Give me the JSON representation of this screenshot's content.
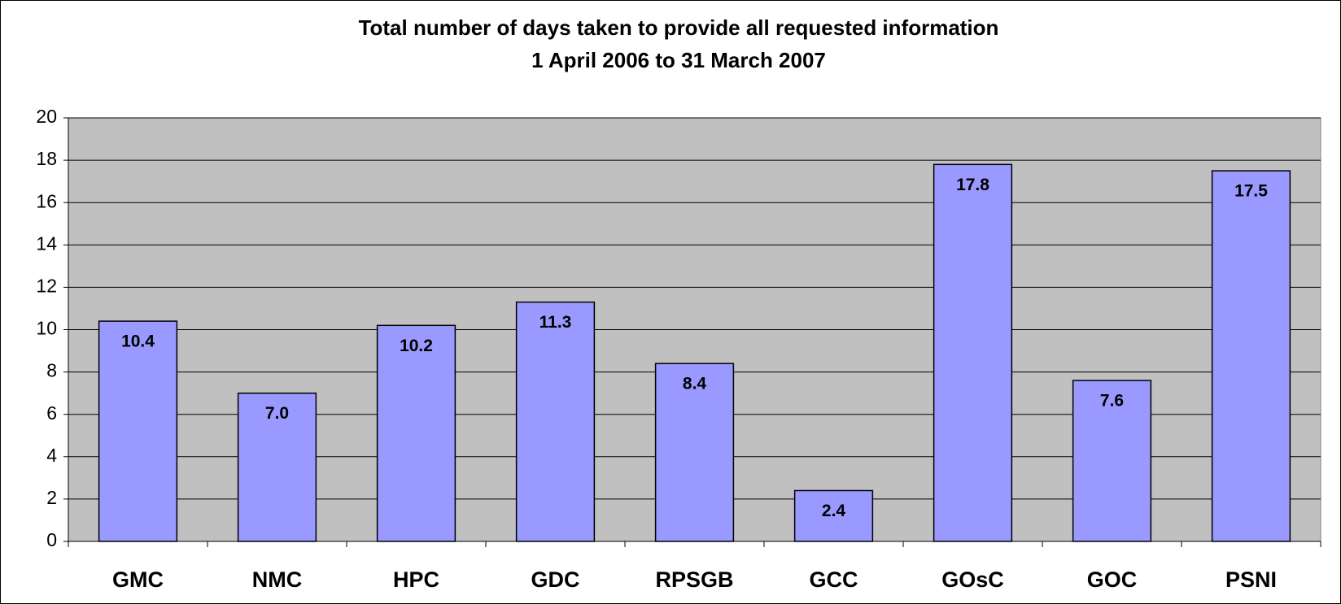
{
  "chart_data": {
    "type": "bar",
    "title": "Total number of days taken to provide all requested information",
    "subtitle": "1 April 2006 to 31 March 2007",
    "categories": [
      "GMC",
      "NMC",
      "HPC",
      "GDC",
      "RPSGB",
      "GCC",
      "GOsC",
      "GOC",
      "PSNI"
    ],
    "values": [
      10.4,
      7,
      10.2,
      11.3,
      8.4,
      2.4,
      17.8,
      7.6,
      17.5
    ],
    "value_labels": [
      "10.4",
      "7.0",
      "10.2",
      "11.3",
      "8.4",
      "2.4",
      "17.8",
      "7.6",
      "17.5"
    ],
    "color": "#9999ff",
    "ylim": [
      0,
      20
    ],
    "yticks": [
      0,
      2,
      4,
      6,
      8,
      10,
      12,
      14,
      16,
      18,
      20
    ],
    "grid": true
  }
}
